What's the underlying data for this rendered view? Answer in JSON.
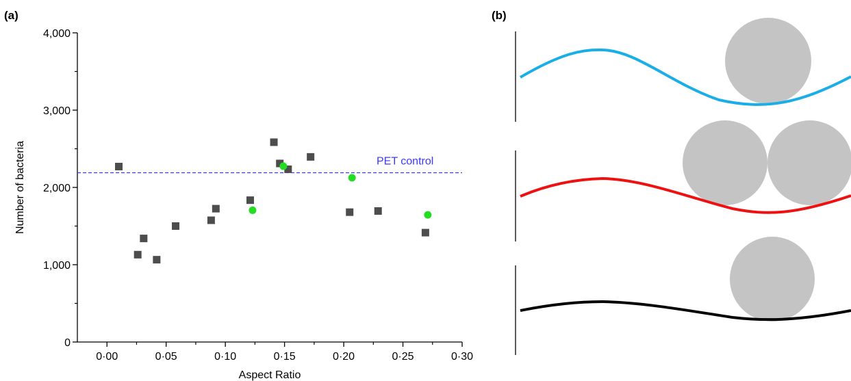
{
  "panel_a_label": "(a)",
  "panel_b_label": "(b)",
  "chart_data": {
    "type": "scatter",
    "title": "",
    "xlabel": "Aspect Ratio",
    "ylabel": "Number of bacteria",
    "xlim": [
      -0.025,
      0.3
    ],
    "ylim": [
      0,
      4000
    ],
    "x_ticks": [
      0.0,
      0.05,
      0.1,
      0.15,
      0.2,
      0.25,
      0.3
    ],
    "x_tick_labels": [
      "0·00",
      "0·05",
      "0·10",
      "0·15",
      "0·20",
      "0·25",
      "0·30"
    ],
    "y_ticks": [
      0,
      1000,
      2000,
      3000,
      4000
    ],
    "y_tick_labels": [
      "0",
      "1,000",
      "2,000",
      "3,000",
      "4,000"
    ],
    "grid": false,
    "reference_line": {
      "label": "PET control",
      "y": 2190,
      "color": "#3a3aff"
    },
    "series": [
      {
        "marker": "square",
        "color": "#4d4d4d",
        "points": [
          [
            0.01,
            2270
          ],
          [
            0.026,
            1130
          ],
          [
            0.031,
            1340
          ],
          [
            0.042,
            1065
          ],
          [
            0.058,
            1500
          ],
          [
            0.088,
            1575
          ],
          [
            0.092,
            1725
          ],
          [
            0.121,
            1835
          ],
          [
            0.141,
            2585
          ],
          [
            0.146,
            2310
          ],
          [
            0.153,
            2235
          ],
          [
            0.172,
            2395
          ],
          [
            0.205,
            1680
          ],
          [
            0.229,
            1695
          ],
          [
            0.269,
            1415
          ]
        ]
      },
      {
        "marker": "circle",
        "color": "#22dd22",
        "points": [
          [
            0.123,
            1705
          ],
          [
            0.149,
            2275
          ],
          [
            0.207,
            2125
          ],
          [
            0.271,
            1645
          ]
        ]
      }
    ]
  },
  "diagram_b": {
    "rows": [
      {
        "curve_color": "#1aaee8",
        "sphere_color": "#c4c4c4",
        "spheres": 1
      },
      {
        "curve_color": "#ee1111",
        "sphere_color": "#c4c4c4",
        "spheres": 2
      },
      {
        "curve_color": "#000000",
        "sphere_color": "#c4c4c4",
        "spheres": 1
      }
    ]
  }
}
